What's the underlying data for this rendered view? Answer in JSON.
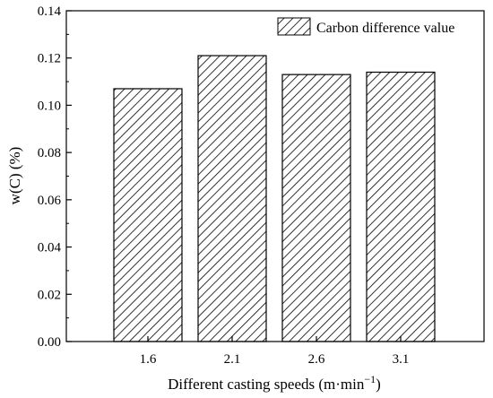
{
  "chart_data": {
    "type": "bar",
    "categories": [
      "1.6",
      "2.1",
      "2.6",
      "3.1"
    ],
    "series": [
      {
        "name": "Carbon difference value",
        "values": [
          0.107,
          0.121,
          0.113,
          0.114
        ]
      }
    ],
    "ylabel": "w(C)  (%)",
    "xlabel_main": "Different casting speeds (m·min",
    "xlabel_sup": "−1",
    "xlabel_close": ")",
    "ylim": [
      0,
      0.14
    ],
    "yticks": [
      "0.00",
      "0.02",
      "0.04",
      "0.06",
      "0.08",
      "0.10",
      "0.12",
      "0.14"
    ],
    "legend_position": "top-right",
    "grid": false,
    "fill_pattern": "diagonal-hatch",
    "colors": {
      "bar_fill": "#ffffff",
      "bar_hatch": "#000000",
      "axis": "#000000"
    }
  }
}
